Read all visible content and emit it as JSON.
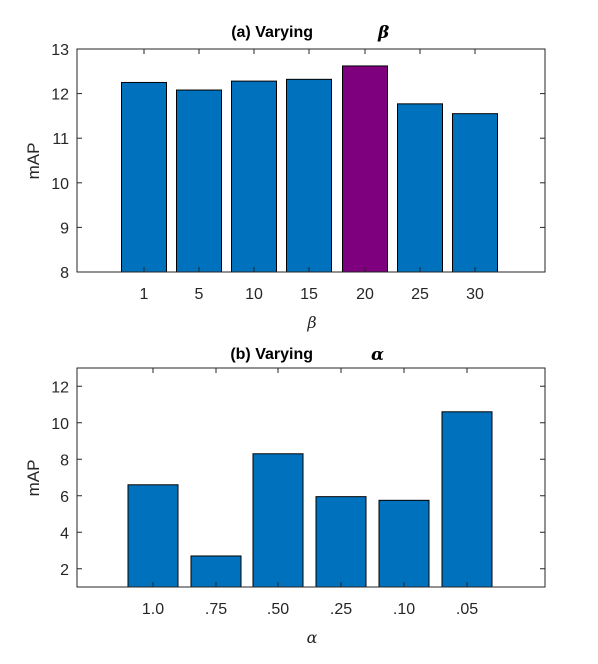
{
  "chart_data": [
    {
      "type": "bar",
      "title": "(a) Varying",
      "title_symbol": "β",
      "xlabel": "β",
      "ylabel": "mAP",
      "categories": [
        "1",
        "5",
        "10",
        "15",
        "20",
        "25",
        "30"
      ],
      "values": [
        12.25,
        12.08,
        12.28,
        12.32,
        12.62,
        11.77,
        11.55
      ],
      "ylim": [
        8,
        13
      ],
      "yticks": [
        8,
        9,
        10,
        11,
        12,
        13
      ],
      "bar_color": "#0072bd",
      "highlight_index": 4,
      "highlight_color": "#7e007e",
      "grid": false
    },
    {
      "type": "bar",
      "title": "(b) Varying",
      "title_symbol": "α",
      "xlabel": "α",
      "ylabel": "mAP",
      "categories": [
        "1.0",
        ".75",
        ".50",
        ".25",
        ".10",
        ".05"
      ],
      "values": [
        6.6,
        2.7,
        8.3,
        5.95,
        5.75,
        10.6
      ],
      "ylim": [
        1,
        13
      ],
      "yticks": [
        2,
        4,
        6,
        8,
        10,
        12
      ],
      "bar_color": "#0072bd",
      "grid": false
    }
  ]
}
